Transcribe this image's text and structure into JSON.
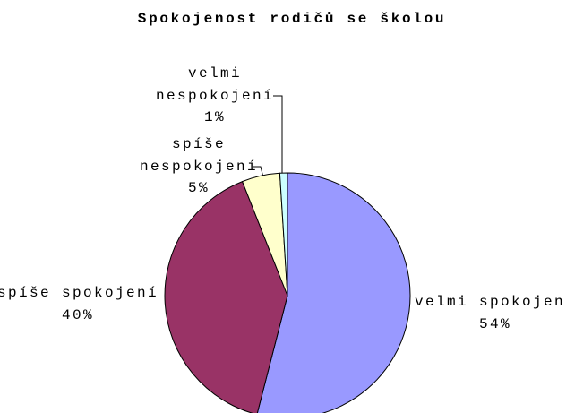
{
  "chart_data": {
    "type": "pie",
    "title": "Spokojenost rodičů se školou",
    "categories": [
      "velmi spokojení",
      "spíše spokojení",
      "spíše nespokojení",
      "velmi nespokojení"
    ],
    "values": [
      54,
      40,
      5,
      1
    ],
    "value_labels": [
      "54%",
      "40%",
      "5%",
      "1%"
    ],
    "colors": [
      "#9999ff",
      "#993366",
      "#ffffcc",
      "#ccffff"
    ]
  }
}
